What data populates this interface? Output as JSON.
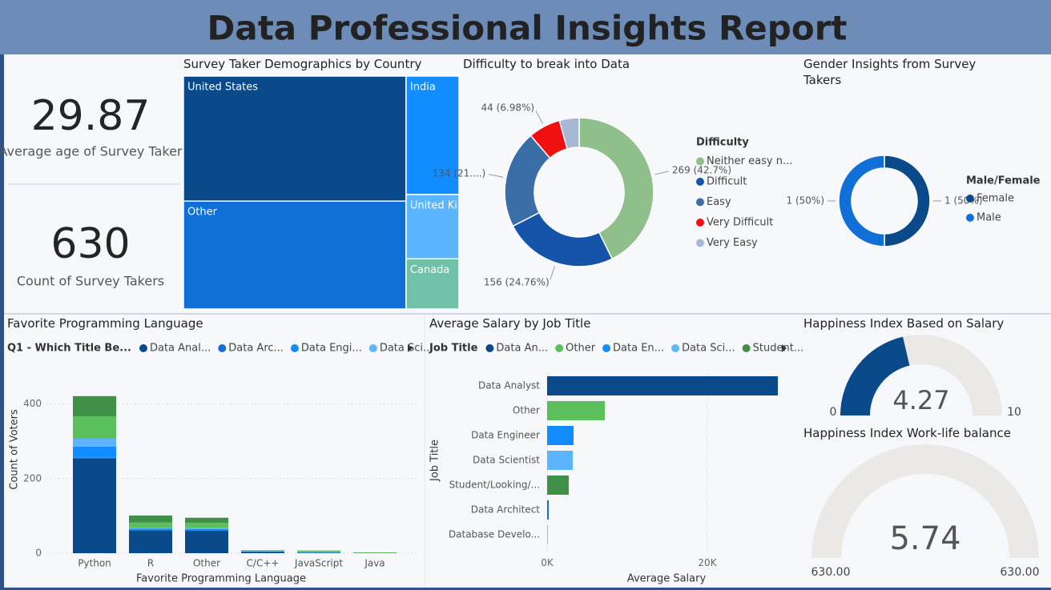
{
  "title": "Data Professional Insights Report",
  "kpis": [
    {
      "value": 29.87,
      "label": "Average age of Survey Taker"
    },
    {
      "value": 630,
      "label": "Count of Survey Takers"
    }
  ],
  "chart_data": [
    {
      "type": "treemap",
      "title": "Survey Taker Demographics by Country",
      "categories": [
        "United States",
        "Other",
        "India",
        "United Kingdom",
        "Canada"
      ],
      "values": [
        262,
        226,
        59,
        32,
        25
      ],
      "colors": [
        "#0b4a8a",
        "#1170d8",
        "#118dff",
        "#5bb5ff",
        "#6fc1a8"
      ]
    },
    {
      "type": "donut",
      "title": "Difficulty to break into Data",
      "legend_title": "Difficulty",
      "categories": [
        "Neither easy n...",
        "Difficult",
        "Easy",
        "Very Difficult",
        "Very Easy"
      ],
      "values": [
        269,
        156,
        134,
        44,
        27
      ],
      "value_labels": [
        "269 (42.7%)",
        "156 (24.76%)",
        "134 (21....)",
        "44 (6.98%)",
        null
      ],
      "colors": [
        "#8fbf8a",
        "#1554a8",
        "#3b6ea6",
        "#f01010",
        "#a6b8d4"
      ]
    },
    {
      "type": "donut",
      "title": "Gender Insights from Survey Takers",
      "legend_title": "Male/Female",
      "categories": [
        "Female",
        "Male"
      ],
      "values": [
        1,
        1
      ],
      "value_labels": [
        "1 (50%)",
        "1 (50%)"
      ],
      "colors": [
        "#0b4a8a",
        "#1170d8"
      ]
    },
    {
      "type": "stacked_bar",
      "title": "Favorite Programming Language",
      "legend_title": "Q1 - Which Title Be...",
      "categories": [
        "Python",
        "R",
        "Other",
        "C/C++",
        "JavaScript",
        "Java"
      ],
      "series": [
        {
          "name": "Data Anal...",
          "color": "#0b4a8a",
          "values": [
            254,
            61,
            60,
            4,
            1,
            0
          ]
        },
        {
          "name": "Data Arc...",
          "color": "#1170d8",
          "values": [
            2,
            0,
            1,
            0,
            0,
            0
          ]
        },
        {
          "name": "Data Engi...",
          "color": "#118dff",
          "values": [
            30,
            5,
            4,
            1,
            1,
            0
          ]
        },
        {
          "name": "Data Sci...",
          "color": "#5bb5ff",
          "values": [
            21,
            2,
            3,
            1,
            1,
            0
          ]
        },
        {
          "color": "#5bc05b",
          "values": [
            60,
            14,
            13,
            1,
            3,
            1
          ]
        },
        {
          "color": "#3f8f46",
          "values": [
            54,
            19,
            14,
            1,
            1,
            1
          ]
        }
      ],
      "ylim": [
        0,
        470
      ],
      "yticks": [
        0,
        200,
        400
      ],
      "x_label": "Favorite Programming Language",
      "y_label": "Count of Voters"
    },
    {
      "type": "hbar",
      "title": "Average Salary by Job Title",
      "legend_title": "Job Title",
      "legend": [
        "Data An...",
        "Other",
        "Data En...",
        "Data Sci...",
        "Student..."
      ],
      "categories": [
        "Data Analyst",
        "Other",
        "Data Engineer",
        "Data Scientist",
        "Student/Looking/...",
        "Data Architect",
        "Database Develo..."
      ],
      "values": [
        28800,
        7200,
        3300,
        3200,
        2700,
        200,
        100
      ],
      "colors": [
        "#0b4a8a",
        "#5bc05b",
        "#118dff",
        "#5bb5ff",
        "#3f8f46",
        "#1170d8",
        "#7fd4a8"
      ],
      "xlim": [
        0,
        28800
      ],
      "xticks": [
        {
          "value": 0,
          "label": "0K"
        },
        {
          "value": 20000,
          "label": "20K"
        }
      ],
      "x_label": "Average Salary",
      "y_label": "Job Title"
    },
    {
      "type": "gauge",
      "title": "Happiness Index Based on Salary",
      "value": 4.27,
      "min": 0,
      "max": 10,
      "color": "#0b4a8a"
    },
    {
      "type": "gauge",
      "title": "Happiness Index Work-life balance",
      "value": 5.74,
      "min": {
        "value": 630,
        "label": "630.00"
      },
      "max": {
        "value": 630,
        "label": "630.00"
      },
      "color": "#0b4a8a"
    }
  ]
}
